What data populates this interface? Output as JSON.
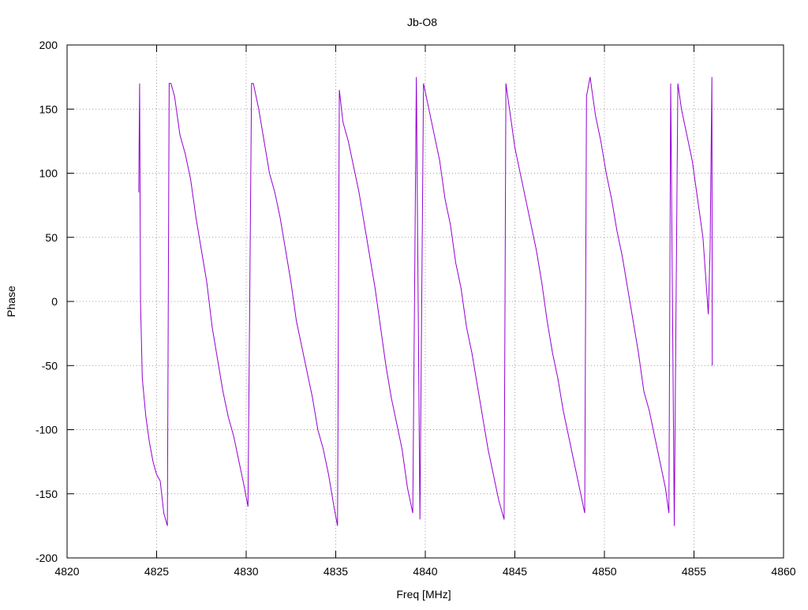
{
  "chart_data": {
    "type": "line",
    "title": "Jb-O8",
    "x_label": "Freq [MHz]",
    "y_label": "Phase",
    "xlim": [
      4820,
      4860
    ],
    "xticks": [
      4820,
      4825,
      4830,
      4835,
      4840,
      4845,
      4850,
      4855,
      4860
    ],
    "ylim": [
      -200,
      200
    ],
    "yticks": [
      -200,
      -150,
      -100,
      -50,
      0,
      50,
      100,
      150,
      200
    ],
    "grid": true,
    "series": [
      {
        "color": "#9400d3",
        "x": [
          4824.0,
          4824.05,
          4824.1,
          4824.2,
          4824.4,
          4824.6,
          4824.8,
          4825.0,
          4825.2,
          4825.4,
          4825.6,
          4825.7,
          4825.8,
          4826.0,
          4826.3,
          4826.6,
          4826.9,
          4827.2,
          4827.5,
          4827.8,
          4828.1,
          4828.4,
          4828.7,
          4829.0,
          4829.3,
          4829.6,
          4829.9,
          4830.1,
          4830.3,
          4830.4,
          4830.7,
          4831.0,
          4831.3,
          4831.6,
          4831.9,
          4832.2,
          4832.5,
          4832.8,
          4833.1,
          4833.4,
          4833.7,
          4834.0,
          4834.3,
          4834.6,
          4834.9,
          4835.1,
          4835.2,
          4835.4,
          4835.7,
          4836.0,
          4836.3,
          4836.6,
          4836.9,
          4837.2,
          4837.5,
          4837.8,
          4838.1,
          4838.4,
          4838.7,
          4839.0,
          4839.3,
          4839.5,
          4839.7,
          4839.9,
          4840.2,
          4840.5,
          4840.8,
          4841.1,
          4841.4,
          4841.7,
          4842.0,
          4842.3,
          4842.6,
          4842.9,
          4843.2,
          4843.5,
          4843.8,
          4844.1,
          4844.4,
          4844.5,
          4844.7,
          4845.0,
          4845.3,
          4845.6,
          4845.9,
          4846.2,
          4846.5,
          4846.8,
          4847.1,
          4847.4,
          4847.7,
          4848.0,
          4848.3,
          4848.6,
          4848.9,
          4849.0,
          4849.2,
          4849.5,
          4849.8,
          4850.1,
          4850.4,
          4850.7,
          4851.0,
          4851.3,
          4851.6,
          4851.9,
          4852.2,
          4852.5,
          4852.8,
          4853.1,
          4853.4,
          4853.6,
          4853.7,
          4853.9,
          4854.1,
          4854.3,
          4854.6,
          4854.9,
          4855.2,
          4855.5,
          4855.7,
          4855.8,
          4855.9,
          4856.0,
          4856.02
        ],
        "values": [
          85,
          170,
          0,
          -60,
          -90,
          -110,
          -125,
          -135,
          -140,
          -165,
          -175,
          170,
          170,
          160,
          130,
          115,
          95,
          65,
          40,
          15,
          -20,
          -45,
          -70,
          -90,
          -105,
          -125,
          -145,
          -160,
          170,
          170,
          150,
          125,
          100,
          85,
          65,
          40,
          15,
          -15,
          -35,
          -55,
          -75,
          -100,
          -115,
          -135,
          -160,
          -175,
          165,
          140,
          125,
          105,
          85,
          60,
          35,
          10,
          -20,
          -50,
          -75,
          -95,
          -115,
          -145,
          -165,
          175,
          -170,
          170,
          150,
          130,
          110,
          80,
          60,
          30,
          10,
          -20,
          -40,
          -65,
          -90,
          -115,
          -135,
          -155,
          -170,
          170,
          150,
          120,
          100,
          80,
          60,
          40,
          15,
          -15,
          -40,
          -60,
          -85,
          -105,
          -125,
          -145,
          -165,
          160,
          175,
          145,
          125,
          100,
          80,
          55,
          35,
          10,
          -15,
          -40,
          -70,
          -85,
          -105,
          -125,
          -145,
          -165,
          170,
          -175,
          170,
          150,
          130,
          110,
          80,
          50,
          10,
          -10,
          40,
          175,
          -50
        ]
      }
    ]
  }
}
